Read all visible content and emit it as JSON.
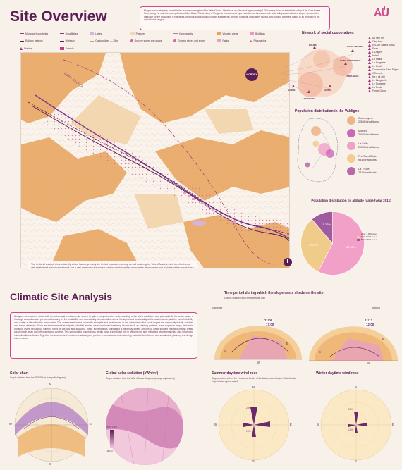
{
  "header": {
    "title": "Site Overview",
    "intro": "Morgex is a municipality located in the autonomous region of the Valle d'Aosta. Situated at an altitude of approximately 1,000 meters, it lies in the middle valley of the Dora Baltea River, along the road connecting Aosta to Mont Blanc. The territory of Morgex is characterized by a mountainous landscape with wide valleys and cultivated slopes, renowned in particular for the production of fine wines. Its geographical position makes it a strategic point for mountain agriculture, tourism, and outdoor activities, thanks to its proximity to the major Alpine ranges.",
    "logo_text": "AU"
  },
  "legend": {
    "items": [
      {
        "label": "Municipal boundaries",
        "kind": "line",
        "color": "#a0307a"
      },
      {
        "label": "Dora Baltea",
        "kind": "line",
        "color": "#7a3a8a"
      },
      {
        "label": "Lakes",
        "kind": "swatch",
        "color": "#d7b3d8"
      },
      {
        "label": "Pastures",
        "kind": "swatch",
        "color": "#f3d7b0"
      },
      {
        "label": "Hydrography",
        "kind": "line",
        "color": "#b07ab0"
      },
      {
        "label": "Wooded areas",
        "kind": "swatch",
        "color": "#e8a25a"
      },
      {
        "label": "Buildings",
        "kind": "swatch",
        "color": "#e89ac0"
      },
      {
        "label": "Railway network",
        "kind": "line",
        "color": "#5b1e54"
      },
      {
        "label": "Highway",
        "kind": "line",
        "color": "#5b1e54"
      },
      {
        "label": "Contour lines — 25 m",
        "kind": "line",
        "color": "#c9a07a"
      },
      {
        "label": "Grocery stores and shops",
        "kind": "dot",
        "color": "#d06aa8"
      },
      {
        "label": "Grocery stores and shops",
        "kind": "dot",
        "color": "#d06aa8"
      },
      {
        "label": "Parks",
        "kind": "swatch",
        "color": "#e6a0c8"
      },
      {
        "label": "Pharmacies",
        "kind": "cross",
        "color": "#d04a8a"
      },
      {
        "label": "Stations",
        "kind": "tri",
        "color": "#a0307a"
      },
      {
        "label": "Schools",
        "kind": "swatch",
        "color": "#c04080"
      }
    ]
  },
  "map": {
    "caption": "The territorial analysis aims to identify critical issues, primarily the limited population density, as well as strengths. Valle d'Aosta, in fact, benefits from a well-established agricultural network and a well-developed associative system, which together promote the development and evolution of the mountainous territory.",
    "river_label": "DORA BALTEA"
  },
  "network": {
    "title": "Network of social cooperatives",
    "center": "MORGEX",
    "nodes": [
      "DOUES",
      "SAINT-VINCENT",
      "SAINT-CHRISTOPHE",
      "ETROUBLES",
      "AOSTA",
      "SARRE",
      "JOVENCAN"
    ],
    "list": [
      "Au sein de",
      "Cary face",
      "EN AIR Valle d'Aosta",
      "Enaa",
      "La Aigles",
      "Indaco",
      "La Stella",
      "La Sorgente",
      "Le Soleil",
      "Coopérative Saint Eligeri",
      "Il Torrente",
      "Ne x gli altri",
      "Le Margherite",
      "Le Sorgente",
      "La Tenda",
      "Forest Gump"
    ]
  },
  "population": {
    "title": "Population distribution in the Valdigne",
    "items": [
      {
        "name": "Courmayeur",
        "value": "2,508 inhabitants",
        "color": "#f0b48a"
      },
      {
        "name": "Morgex",
        "value": "2,089 inhabitants",
        "color": "#c86ab8"
      },
      {
        "name": "La Salle",
        "value": "2,052 inhabitants",
        "color": "#f2a0c8"
      },
      {
        "name": "Pré-Saint-Didier",
        "value": "983 inhabitants",
        "color": "#f2cc90"
      },
      {
        "name": "La Thuile",
        "value": "781 inhabitants",
        "color": "#b86aa8"
      }
    ]
  },
  "altitude": {
    "title": "Population distribution by altitude range (year 2011)",
    "legend": [
      "Over 1,000 m a.s.",
      "600–1,000 m a.s.",
      "Below 600 m a.s."
    ],
    "chart_data": {
      "type": "pie",
      "labels": [
        "Over 1,000 m",
        "600–1,000 m",
        "Below 600 m"
      ],
      "values": [
        57.52,
        31.21,
        11.27
      ],
      "colors": [
        "#f2a0c8",
        "#f0cc8a",
        "#a05aa0"
      ]
    },
    "value_labels": [
      "57.52%",
      "31.21%",
      "11.27%"
    ]
  },
  "climate": {
    "title": "Climatic Site Analysis",
    "body": "Analyses were carried out at both the urban and environmental scales to gain a comprehensive understanding of the site's conditions and potentials. At the urban scale, a thorough evaluation was performed focusing on the availability and accessibility of essential services, the layout and functionality of the road network, and the overall livability and quality of life within the town center. This assessment aimed to identify strengths and weaknesses in the urban fabric that could impact the community's daily activities and social dynamics. From an environmental standpoint, detailed studies were conducted analyzing factors such as shading patterns, solar exposure maps, and solar radiation levels throughout different times of the day and seasons. These investigations highlighted a generally limited amount of direct sunlight reaching certain areas, coupled with weak and infrequent wind currents. This surrounding mountainous terrain plays a significant role in affecting the site, mitigating wind intensity but also influencing microclimatic conditions. Together, these urban and environmental analyses provide a foundational understanding essential for informed and sustainable planning and design interventions."
  },
  "shade": {
    "title": "Time period during which the slope casts shade on the site",
    "subtitle": "Graphs obtained from AndrewMarsh.com",
    "summer_label": "Summer",
    "winter_label": "Winter",
    "summer_date": "21/06",
    "summer_time": "17:00",
    "winter_date": "21/12",
    "winter_time": "12:00",
    "dirs": [
      "N",
      "S",
      "E",
      "W"
    ]
  },
  "solar": {
    "title": "Solar chart",
    "subtitle": "Graph obtained from the PVGIS tool (sun path diagram)",
    "dirs": [
      "N",
      "E",
      "S",
      "W"
    ]
  },
  "radiation": {
    "title": "Global solar radiation (kWh/m²)",
    "subtitle": "Graph obtained from the Valle d'Aosta Geoportal (mappa esplorativa)",
    "high": "High: 2600",
    "low": "Low: 0"
  },
  "wind_summer": {
    "title": "Summer daytime wind rose",
    "subtitle": "Graphs obtained from the Functional Center of the Autonomous Region Valle d'Aosta (http://cfvda.regione.vda.it)",
    "dirs": [
      "N",
      "E",
      "S",
      "W"
    ],
    "ring_labels": [
      "20%",
      "10%"
    ]
  },
  "wind_winter": {
    "title": "Winter daytime wind rose",
    "dirs": [
      "N",
      "E",
      "S",
      "W"
    ],
    "ring_labels": [
      "20%",
      "10%"
    ]
  },
  "colors": {
    "accent": "#d04a8a",
    "title": "#5b1e54",
    "wood": "#e8a25a",
    "pasture": "#f3d7b0",
    "building": "#e89ac0"
  }
}
